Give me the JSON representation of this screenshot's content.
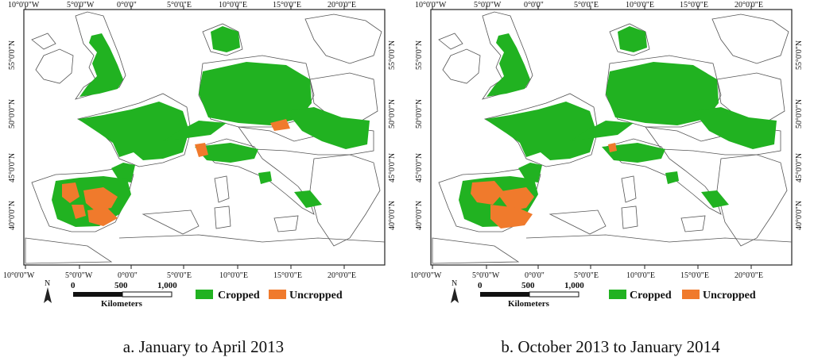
{
  "panels": [
    {
      "caption": "a. January to April 2013",
      "lon_labels": [
        "10°0'0\"W",
        "5°0'0\"W",
        "0°0'0\"",
        "5°0'0\"E",
        "10°0'0\"E",
        "15°0'0\"E",
        "20°0'0\"E"
      ],
      "lat_labels": [
        "55°0'0\"N",
        "50°0'0\"N",
        "45°0'0\"N",
        "40°0'0\"N"
      ],
      "scale_labels": [
        "0",
        "500",
        "1,000"
      ],
      "scale_unit": "Kilometers",
      "north_label": "N",
      "legend": [
        {
          "label": "Cropped",
          "color": "#21b221"
        },
        {
          "label": "Uncropped",
          "color": "#f07a2c"
        }
      ]
    },
    {
      "caption": "b. October 2013 to January 2014",
      "lon_labels": [
        "10°0'0\"W",
        "5°0'0\"W",
        "0°0'0\"",
        "5°0'0\"E",
        "10°0'0\"E",
        "15°0'0\"E",
        "20°0'0\"E"
      ],
      "lat_labels": [
        "55°0'0\"N",
        "50°0'0\"N",
        "45°0'0\"N",
        "40°0'0\"N"
      ],
      "scale_labels": [
        "0",
        "500",
        "1,000"
      ],
      "scale_unit": "Kilometers",
      "north_label": "N",
      "legend": [
        {
          "label": "Cropped",
          "color": "#21b221"
        },
        {
          "label": "Uncropped",
          "color": "#f07a2c"
        }
      ]
    }
  ]
}
